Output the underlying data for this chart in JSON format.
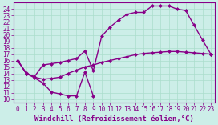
{
  "bg_color": "#cceee8",
  "grid_color": "#aaddcc",
  "line_color": "#880088",
  "markersize": 2.5,
  "linewidth": 1.0,
  "xlabel": "Windchill (Refroidissement éolien,°C)",
  "xlabel_fontsize": 6.5,
  "tick_fontsize": 5.5,
  "xlim": [
    -0.5,
    23.5
  ],
  "ylim": [
    9.5,
    25.0
  ],
  "xticks": [
    0,
    1,
    2,
    3,
    4,
    5,
    6,
    7,
    8,
    9,
    10,
    11,
    12,
    13,
    14,
    15,
    16,
    17,
    18,
    19,
    20,
    21,
    22,
    23
  ],
  "yticks": [
    10,
    11,
    12,
    13,
    14,
    15,
    16,
    17,
    18,
    19,
    20,
    21,
    22,
    23,
    24
  ],
  "line1_x": [
    0,
    1,
    2,
    3,
    4,
    5,
    6,
    7,
    8,
    9
  ],
  "line1_y": [
    16,
    14,
    13.3,
    12.5,
    11.1,
    10.8,
    10.5,
    10.5,
    14.2,
    10.5
  ],
  "line2_x": [
    0,
    1,
    2,
    3,
    4,
    5,
    6,
    7,
    8,
    9,
    10,
    11,
    12,
    13,
    14,
    15,
    16,
    17,
    18,
    19,
    20,
    21,
    22,
    23
  ],
  "line2_y": [
    16,
    14.1,
    13.4,
    13.1,
    13.2,
    13.4,
    14.0,
    14.5,
    15.0,
    15.3,
    15.7,
    16.0,
    16.3,
    16.6,
    16.9,
    17.1,
    17.2,
    17.3,
    17.4,
    17.4,
    17.3,
    17.2,
    17.1,
    17.0
  ],
  "line3_x": [
    0,
    1,
    2,
    3,
    4,
    5,
    6,
    7,
    8,
    9,
    10,
    11,
    12,
    13,
    14,
    15,
    16,
    17,
    18,
    19,
    20,
    21,
    22,
    23
  ],
  "line3_y": [
    16,
    14,
    13.5,
    15.3,
    15.5,
    15.7,
    16.0,
    16.3,
    17.5,
    14.4,
    19.8,
    21.2,
    22.3,
    23.2,
    23.5,
    23.5,
    24.5,
    24.5,
    24.5,
    24.0,
    23.8,
    21.5,
    19.2,
    17.0
  ]
}
